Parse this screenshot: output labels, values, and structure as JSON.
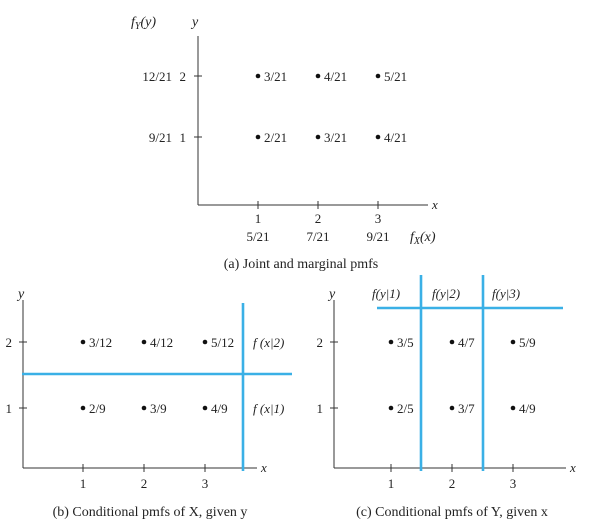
{
  "panel_a": {
    "ylabel_fy": "f",
    "ylabel_fy_sub": "Y",
    "ylabel_fy_arg": "(y)",
    "ylabel_y": "y",
    "xlabel": "x",
    "fx_label": "f",
    "fx_sub": "X",
    "fx_arg": "(x)",
    "x_ticks": [
      "1",
      "2",
      "3"
    ],
    "x_marginals": [
      "5/21",
      "7/21",
      "9/21"
    ],
    "y_ticks": [
      "2",
      "1"
    ],
    "y_marginals": [
      "12/21",
      "9/21"
    ],
    "row2": [
      "3/21",
      "4/21",
      "5/21"
    ],
    "row1": [
      "2/21",
      "3/21",
      "4/21"
    ],
    "caption": "(a) Joint and marginal pmfs"
  },
  "panel_b": {
    "ylabel": "y",
    "xlabel": "x",
    "x_ticks": [
      "1",
      "2",
      "3"
    ],
    "y_ticks": [
      "2",
      "1"
    ],
    "row2": [
      "3/12",
      "4/12",
      "5/12"
    ],
    "row1": [
      "2/9",
      "3/9",
      "4/9"
    ],
    "cond2": "f (x|2)",
    "cond1": "f (x|1)",
    "caption": "(b) Conditional pmfs of X, given y"
  },
  "panel_c": {
    "ylabel": "y",
    "xlabel": "x",
    "x_ticks": [
      "1",
      "2",
      "3"
    ],
    "y_ticks": [
      "2",
      "1"
    ],
    "headers": [
      "f(y|1)",
      "f(y|2)",
      "f(y|3)"
    ],
    "row2": [
      "3/5",
      "4/7",
      "5/9"
    ],
    "row1": [
      "2/5",
      "3/7",
      "4/9"
    ],
    "caption": "(c) Conditional pmfs of Y, given x"
  },
  "colors": {
    "accent": "#3ab0e6",
    "ink": "#222222"
  }
}
